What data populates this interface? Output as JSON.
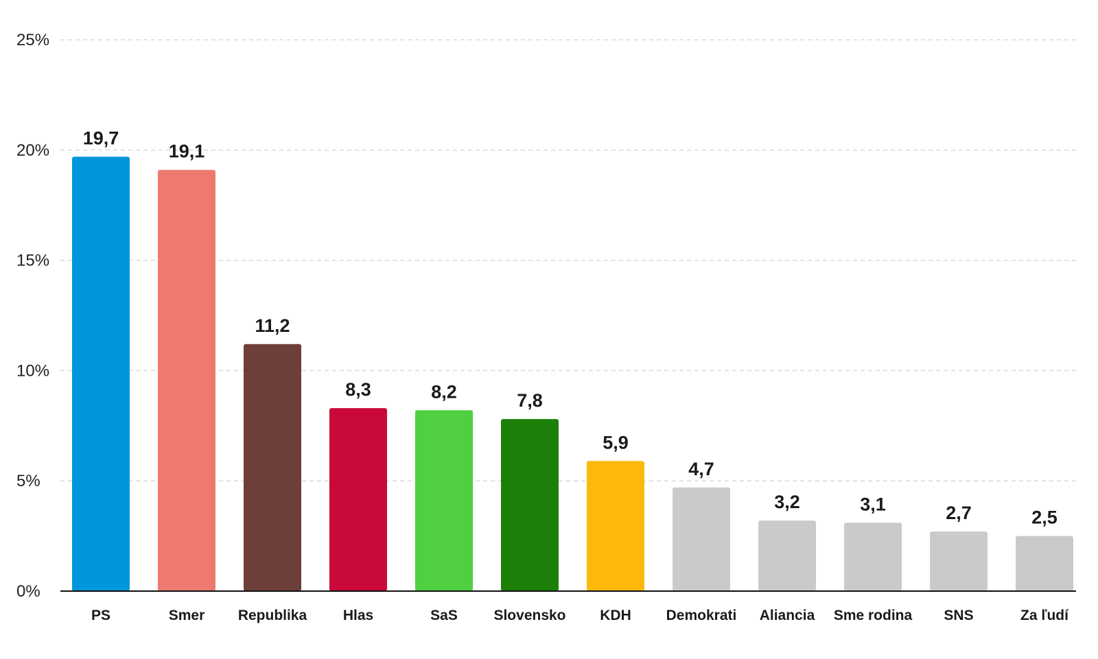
{
  "chart_data": {
    "type": "bar",
    "categories": [
      "PS",
      "Smer",
      "Republika",
      "Hlas",
      "SaS",
      "Slovensko",
      "KDH",
      "Demokrati",
      "Aliancia",
      "Sme rodina",
      "SNS",
      "Za ľudí"
    ],
    "values": [
      19.7,
      19.1,
      11.2,
      8.3,
      8.2,
      7.8,
      5.9,
      4.7,
      3.2,
      3.1,
      2.7,
      2.5
    ],
    "value_labels": [
      "19,7",
      "19,1",
      "11,2",
      "8,3",
      "8,2",
      "7,8",
      "5,9",
      "4,7",
      "3,2",
      "3,1",
      "2,7",
      "2,5"
    ],
    "colors": [
      "#0096DB",
      "#EE7A6F",
      "#6E3F3A",
      "#C9093A",
      "#4FCF41",
      "#1C7F07",
      "#FDB90B",
      "#CACACA",
      "#CACACA",
      "#CACACA",
      "#CACACA",
      "#CACACA"
    ],
    "yticks": [
      0,
      5,
      10,
      15,
      20,
      25
    ],
    "ytick_labels": [
      "0%",
      "5%",
      "10%",
      "15%",
      "20%",
      "25%"
    ],
    "ylim": [
      0,
      25
    ],
    "grid": true,
    "title": "",
    "xlabel": "",
    "ylabel": ""
  }
}
